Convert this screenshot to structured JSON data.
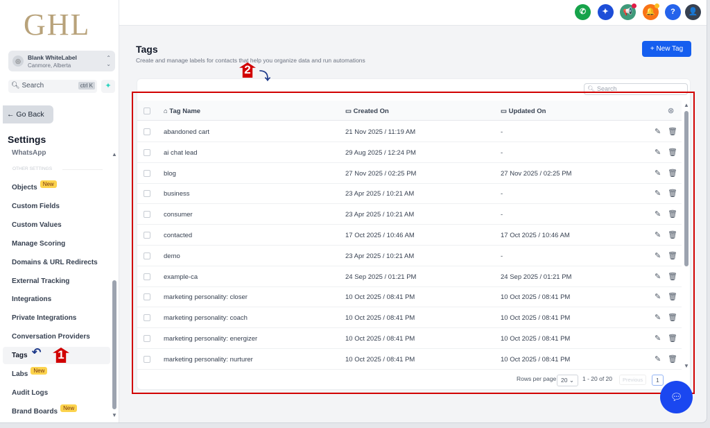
{
  "logo": "GHL",
  "account": {
    "name": "Blank WhiteLabel",
    "location": "Canmore, Alberta"
  },
  "search": {
    "placeholder": "Search",
    "shortcut": "ctrl K"
  },
  "go_back": "← Go Back",
  "settings_title": "Settings",
  "nav": {
    "partial_item": "WhatsApp",
    "section": "OTHER SETTINGS",
    "items": [
      {
        "label": "Objects",
        "badge": "New"
      },
      {
        "label": "Custom Fields"
      },
      {
        "label": "Custom Values"
      },
      {
        "label": "Manage Scoring"
      },
      {
        "label": "Domains & URL Redirects"
      },
      {
        "label": "External Tracking"
      },
      {
        "label": "Integrations"
      },
      {
        "label": "Private Integrations"
      },
      {
        "label": "Conversation Providers"
      },
      {
        "label": "Tags",
        "active": true
      },
      {
        "label": "Labs",
        "badge": "New"
      },
      {
        "label": "Audit Logs"
      },
      {
        "label": "Brand Boards",
        "badge": "New"
      }
    ]
  },
  "topbar": {
    "icons": [
      {
        "name": "phone-icon",
        "color": "#16a34a",
        "glyph": "✆"
      },
      {
        "name": "sparkle-icon",
        "color": "#1d4ed8",
        "glyph": "✦"
      },
      {
        "name": "megaphone-icon",
        "color": "#3f9a7a",
        "glyph": "📢"
      },
      {
        "name": "bell-icon",
        "color": "#f97316",
        "glyph": "🔔"
      },
      {
        "name": "help-icon",
        "color": "#2563eb",
        "glyph": "?"
      }
    ]
  },
  "page": {
    "title": "Tags",
    "subtitle": "Create and manage labels for contacts that help you organize data and run automations",
    "new_button": "+ New Tag",
    "search_placeholder": "Search"
  },
  "table": {
    "headers": [
      "Tag Name",
      "Created On",
      "Updated On"
    ],
    "rows": [
      [
        "abandoned cart",
        "21 Nov 2025 / 11:19 AM",
        "-"
      ],
      [
        "ai chat lead",
        "29 Aug 2025 / 12:24 PM",
        "-"
      ],
      [
        "blog",
        "27 Nov 2025 / 02:25 PM",
        "27 Nov 2025 / 02:25 PM"
      ],
      [
        "business",
        "23 Apr 2025 / 10:21 AM",
        "-"
      ],
      [
        "consumer",
        "23 Apr 2025 / 10:21 AM",
        "-"
      ],
      [
        "contacted",
        "17 Oct 2025 / 10:46 AM",
        "17 Oct 2025 / 10:46 AM"
      ],
      [
        "demo",
        "23 Apr 2025 / 10:21 AM",
        "-"
      ],
      [
        "example-ca",
        "24 Sep 2025 / 01:21 PM",
        "24 Sep 2025 / 01:21 PM"
      ],
      [
        "marketing personality: closer",
        "10 Oct 2025 / 08:41 PM",
        "10 Oct 2025 / 08:41 PM"
      ],
      [
        "marketing personality: coach",
        "10 Oct 2025 / 08:41 PM",
        "10 Oct 2025 / 08:41 PM"
      ],
      [
        "marketing personality: energizer",
        "10 Oct 2025 / 08:41 PM",
        "10 Oct 2025 / 08:41 PM"
      ],
      [
        "marketing personality: nurturer",
        "10 Oct 2025 / 08:41 PM",
        "10 Oct 2025 / 08:41 PM"
      ]
    ]
  },
  "pagination": {
    "rows_label": "Rows per page",
    "rows_value": "20",
    "range": "1 - 20 of 20",
    "previous": "Previous",
    "page": "1"
  },
  "annotations": {
    "one": "1",
    "two": "2"
  }
}
